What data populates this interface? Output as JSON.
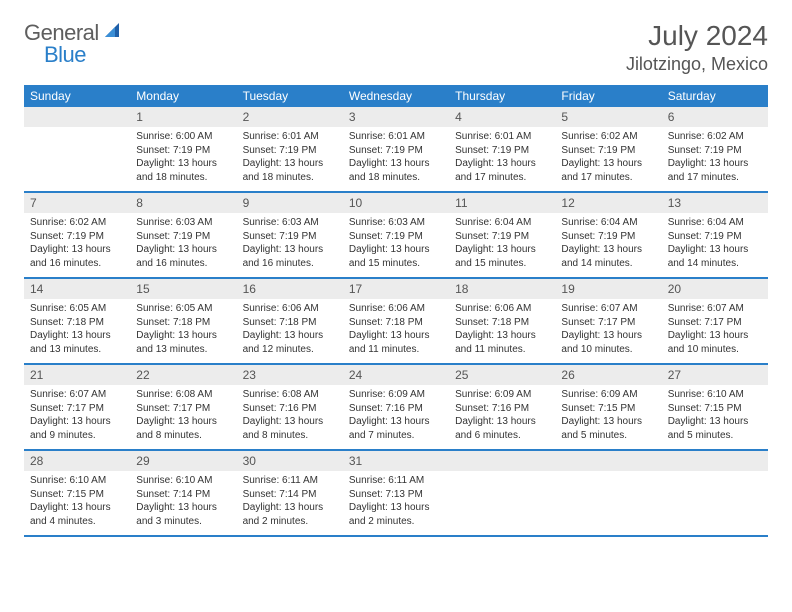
{
  "brand": {
    "part1": "General",
    "part2": "Blue"
  },
  "title": "July 2024",
  "location": "Jilotzingo, Mexico",
  "colors": {
    "accent": "#2a7fc9",
    "header_bg": "#ececec",
    "text": "#333333"
  },
  "dayNames": [
    "Sunday",
    "Monday",
    "Tuesday",
    "Wednesday",
    "Thursday",
    "Friday",
    "Saturday"
  ],
  "weeks": [
    [
      {
        "day": ""
      },
      {
        "day": "1",
        "sunrise": "Sunrise: 6:00 AM",
        "sunset": "Sunset: 7:19 PM",
        "daylight1": "Daylight: 13 hours",
        "daylight2": "and 18 minutes."
      },
      {
        "day": "2",
        "sunrise": "Sunrise: 6:01 AM",
        "sunset": "Sunset: 7:19 PM",
        "daylight1": "Daylight: 13 hours",
        "daylight2": "and 18 minutes."
      },
      {
        "day": "3",
        "sunrise": "Sunrise: 6:01 AM",
        "sunset": "Sunset: 7:19 PM",
        "daylight1": "Daylight: 13 hours",
        "daylight2": "and 18 minutes."
      },
      {
        "day": "4",
        "sunrise": "Sunrise: 6:01 AM",
        "sunset": "Sunset: 7:19 PM",
        "daylight1": "Daylight: 13 hours",
        "daylight2": "and 17 minutes."
      },
      {
        "day": "5",
        "sunrise": "Sunrise: 6:02 AM",
        "sunset": "Sunset: 7:19 PM",
        "daylight1": "Daylight: 13 hours",
        "daylight2": "and 17 minutes."
      },
      {
        "day": "6",
        "sunrise": "Sunrise: 6:02 AM",
        "sunset": "Sunset: 7:19 PM",
        "daylight1": "Daylight: 13 hours",
        "daylight2": "and 17 minutes."
      }
    ],
    [
      {
        "day": "7",
        "sunrise": "Sunrise: 6:02 AM",
        "sunset": "Sunset: 7:19 PM",
        "daylight1": "Daylight: 13 hours",
        "daylight2": "and 16 minutes."
      },
      {
        "day": "8",
        "sunrise": "Sunrise: 6:03 AM",
        "sunset": "Sunset: 7:19 PM",
        "daylight1": "Daylight: 13 hours",
        "daylight2": "and 16 minutes."
      },
      {
        "day": "9",
        "sunrise": "Sunrise: 6:03 AM",
        "sunset": "Sunset: 7:19 PM",
        "daylight1": "Daylight: 13 hours",
        "daylight2": "and 16 minutes."
      },
      {
        "day": "10",
        "sunrise": "Sunrise: 6:03 AM",
        "sunset": "Sunset: 7:19 PM",
        "daylight1": "Daylight: 13 hours",
        "daylight2": "and 15 minutes."
      },
      {
        "day": "11",
        "sunrise": "Sunrise: 6:04 AM",
        "sunset": "Sunset: 7:19 PM",
        "daylight1": "Daylight: 13 hours",
        "daylight2": "and 15 minutes."
      },
      {
        "day": "12",
        "sunrise": "Sunrise: 6:04 AM",
        "sunset": "Sunset: 7:19 PM",
        "daylight1": "Daylight: 13 hours",
        "daylight2": "and 14 minutes."
      },
      {
        "day": "13",
        "sunrise": "Sunrise: 6:04 AM",
        "sunset": "Sunset: 7:19 PM",
        "daylight1": "Daylight: 13 hours",
        "daylight2": "and 14 minutes."
      }
    ],
    [
      {
        "day": "14",
        "sunrise": "Sunrise: 6:05 AM",
        "sunset": "Sunset: 7:18 PM",
        "daylight1": "Daylight: 13 hours",
        "daylight2": "and 13 minutes."
      },
      {
        "day": "15",
        "sunrise": "Sunrise: 6:05 AM",
        "sunset": "Sunset: 7:18 PM",
        "daylight1": "Daylight: 13 hours",
        "daylight2": "and 13 minutes."
      },
      {
        "day": "16",
        "sunrise": "Sunrise: 6:06 AM",
        "sunset": "Sunset: 7:18 PM",
        "daylight1": "Daylight: 13 hours",
        "daylight2": "and 12 minutes."
      },
      {
        "day": "17",
        "sunrise": "Sunrise: 6:06 AM",
        "sunset": "Sunset: 7:18 PM",
        "daylight1": "Daylight: 13 hours",
        "daylight2": "and 11 minutes."
      },
      {
        "day": "18",
        "sunrise": "Sunrise: 6:06 AM",
        "sunset": "Sunset: 7:18 PM",
        "daylight1": "Daylight: 13 hours",
        "daylight2": "and 11 minutes."
      },
      {
        "day": "19",
        "sunrise": "Sunrise: 6:07 AM",
        "sunset": "Sunset: 7:17 PM",
        "daylight1": "Daylight: 13 hours",
        "daylight2": "and 10 minutes."
      },
      {
        "day": "20",
        "sunrise": "Sunrise: 6:07 AM",
        "sunset": "Sunset: 7:17 PM",
        "daylight1": "Daylight: 13 hours",
        "daylight2": "and 10 minutes."
      }
    ],
    [
      {
        "day": "21",
        "sunrise": "Sunrise: 6:07 AM",
        "sunset": "Sunset: 7:17 PM",
        "daylight1": "Daylight: 13 hours",
        "daylight2": "and 9 minutes."
      },
      {
        "day": "22",
        "sunrise": "Sunrise: 6:08 AM",
        "sunset": "Sunset: 7:17 PM",
        "daylight1": "Daylight: 13 hours",
        "daylight2": "and 8 minutes."
      },
      {
        "day": "23",
        "sunrise": "Sunrise: 6:08 AM",
        "sunset": "Sunset: 7:16 PM",
        "daylight1": "Daylight: 13 hours",
        "daylight2": "and 8 minutes."
      },
      {
        "day": "24",
        "sunrise": "Sunrise: 6:09 AM",
        "sunset": "Sunset: 7:16 PM",
        "daylight1": "Daylight: 13 hours",
        "daylight2": "and 7 minutes."
      },
      {
        "day": "25",
        "sunrise": "Sunrise: 6:09 AM",
        "sunset": "Sunset: 7:16 PM",
        "daylight1": "Daylight: 13 hours",
        "daylight2": "and 6 minutes."
      },
      {
        "day": "26",
        "sunrise": "Sunrise: 6:09 AM",
        "sunset": "Sunset: 7:15 PM",
        "daylight1": "Daylight: 13 hours",
        "daylight2": "and 5 minutes."
      },
      {
        "day": "27",
        "sunrise": "Sunrise: 6:10 AM",
        "sunset": "Sunset: 7:15 PM",
        "daylight1": "Daylight: 13 hours",
        "daylight2": "and 5 minutes."
      }
    ],
    [
      {
        "day": "28",
        "sunrise": "Sunrise: 6:10 AM",
        "sunset": "Sunset: 7:15 PM",
        "daylight1": "Daylight: 13 hours",
        "daylight2": "and 4 minutes."
      },
      {
        "day": "29",
        "sunrise": "Sunrise: 6:10 AM",
        "sunset": "Sunset: 7:14 PM",
        "daylight1": "Daylight: 13 hours",
        "daylight2": "and 3 minutes."
      },
      {
        "day": "30",
        "sunrise": "Sunrise: 6:11 AM",
        "sunset": "Sunset: 7:14 PM",
        "daylight1": "Daylight: 13 hours",
        "daylight2": "and 2 minutes."
      },
      {
        "day": "31",
        "sunrise": "Sunrise: 6:11 AM",
        "sunset": "Sunset: 7:13 PM",
        "daylight1": "Daylight: 13 hours",
        "daylight2": "and 2 minutes."
      },
      {
        "day": ""
      },
      {
        "day": ""
      },
      {
        "day": ""
      }
    ]
  ]
}
